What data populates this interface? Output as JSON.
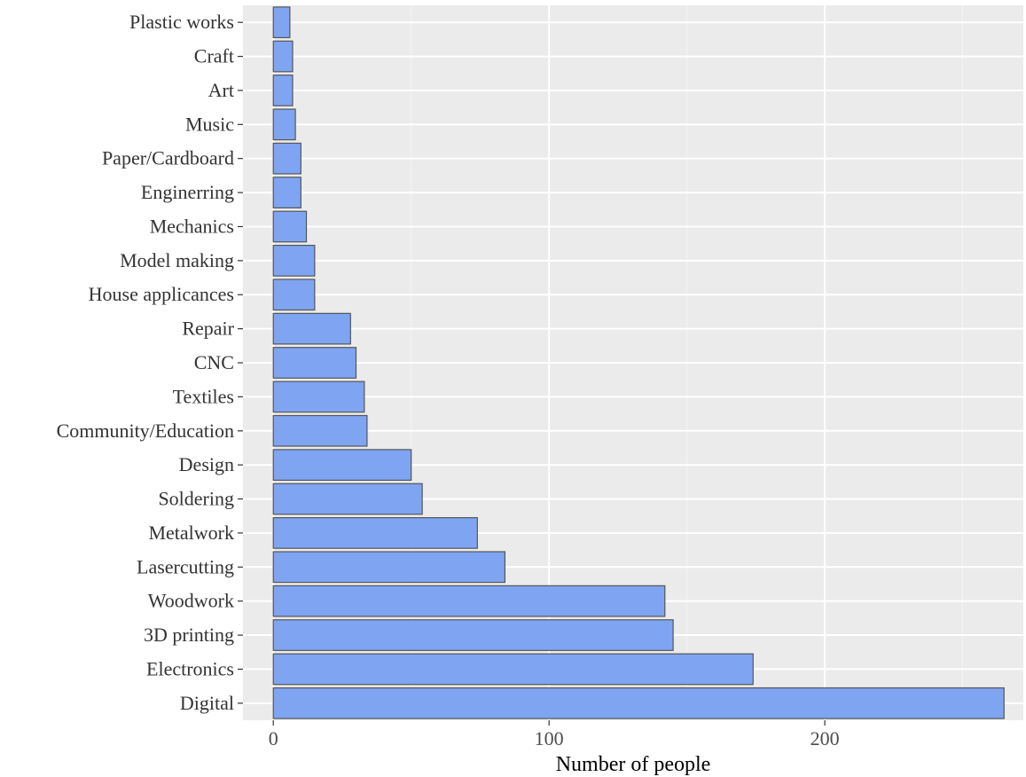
{
  "chart_data": {
    "type": "bar",
    "orientation": "horizontal",
    "title": "",
    "xlabel": "Number of people",
    "ylabel": "",
    "xlim": [
      -11,
      272
    ],
    "x_ticks": [
      0,
      100,
      200
    ],
    "x_tick_labels": [
      "0",
      "100",
      "200"
    ],
    "grid": true,
    "legend": "none",
    "categories": [
      "Digital",
      "Electronics",
      "3D printing",
      "Woodwork",
      "Lasercutting",
      "Metalwork",
      "Soldering",
      "Design",
      "Community/Education",
      "Textiles",
      "CNC",
      "Repair",
      "House applicances",
      "Model making",
      "Mechanics",
      "Enginerring",
      "Paper/Cardboard",
      "Music",
      "Art",
      "Craft",
      "Plastic works"
    ],
    "values": [
      265,
      174,
      145,
      142,
      84,
      74,
      54,
      50,
      34,
      33,
      30,
      28,
      15,
      15,
      12,
      10,
      10,
      8,
      7,
      7,
      6
    ],
    "colors": {
      "bar_fill": "#7fa5f2",
      "bar_stroke": "#555555",
      "panel_bg": "#ebebeb",
      "grid_major": "#ffffff",
      "grid_minor": "#f5f5f5",
      "tick": "#333333"
    }
  }
}
